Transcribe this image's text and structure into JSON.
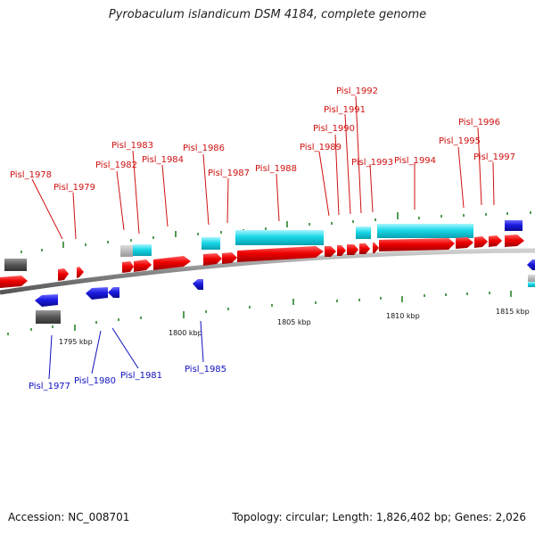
{
  "title": "Pyrobaculum islandicum DSM 4184, complete genome",
  "footer": {
    "accession": "Accession: NC_008701",
    "info": "Topology: circular; Length: 1,826,402 bp; Genes: 2,026"
  },
  "colors": {
    "forward_cds": "#e80000",
    "reverse_cds": "#1a1ae0",
    "rna": "#18d8e8",
    "pseudo": "#555555",
    "label_forward": "#d01010",
    "label_reverse": "#1010c0",
    "tick": "#1a7a1a",
    "backbone": "#8a8a8a"
  },
  "scale_labels": [
    "1795 kbp",
    "1800 kbp",
    "1805 kbp",
    "1810 kbp",
    "1815 kbp"
  ],
  "gene_labels_forward": [
    "Pisl_1978",
    "Pisl_1979",
    "Pisl_1982",
    "Pisl_1983",
    "Pisl_1984",
    "Pisl_1986",
    "Pisl_1987",
    "Pisl_1988",
    "Pisl_1989",
    "Pisl_1990",
    "Pisl_1991",
    "Pisl_1992",
    "Pisl_1993",
    "Pisl_1994",
    "Pisl_1995",
    "Pisl_1996",
    "Pisl_1997"
  ],
  "gene_labels_reverse": [
    "Pisl_1977",
    "Pisl_1980",
    "Pisl_1981",
    "Pisl_1985"
  ]
}
